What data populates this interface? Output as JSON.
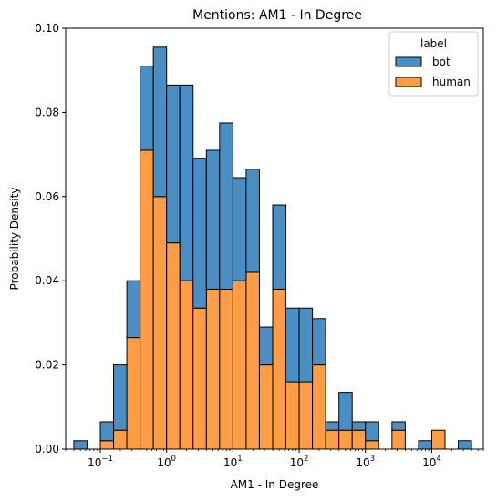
{
  "chart_data": {
    "type": "bar",
    "histogram": true,
    "stacked": true,
    "title": "Mentions: AM1 - In Degree",
    "xlabel": "AM1 - In Degree",
    "ylabel": "Probability Density",
    "xscale": "log",
    "xlim": [
      0.03,
      60000
    ],
    "ylim": [
      0,
      0.1
    ],
    "yticks": [
      "0.00",
      "0.02",
      "0.04",
      "0.06",
      "0.08",
      "0.10"
    ],
    "xticks": [
      {
        "value": 0.1,
        "base": "10",
        "exp": "−1"
      },
      {
        "value": 1,
        "base": "10",
        "exp": "0"
      },
      {
        "value": 10,
        "base": "10",
        "exp": "1"
      },
      {
        "value": 100,
        "base": "10",
        "exp": "2"
      },
      {
        "value": 1000,
        "base": "10",
        "exp": "3"
      },
      {
        "value": 10000,
        "base": "10",
        "exp": "4"
      }
    ],
    "bin_edges_log10": [
      -1.4,
      -1.2,
      -1.0,
      -0.8,
      -0.6,
      -0.4,
      -0.2,
      0.0,
      0.2,
      0.4,
      0.6,
      0.8,
      1.0,
      1.2,
      1.4,
      1.6,
      1.8,
      2.0,
      2.2,
      2.4,
      2.6,
      2.8,
      3.0,
      3.2,
      3.4,
      3.6,
      3.8,
      4.0,
      4.2,
      4.4,
      4.6
    ],
    "series": [
      {
        "name": "human",
        "color": "#ff9d46",
        "values": [
          0,
          0,
          0.002,
          0.0045,
          0.0265,
          0.071,
          0.06,
          0.049,
          0.04,
          0.0335,
          0.038,
          0.038,
          0.04,
          0.042,
          0.02,
          0.038,
          0.016,
          0.016,
          0.02,
          0.0045,
          0.0045,
          0.0045,
          0.002,
          0,
          0.0045,
          0,
          0,
          0.0045,
          0,
          0
        ]
      },
      {
        "name": "bot",
        "color": "#4b8ec4",
        "values": [
          0.002,
          0,
          0.0045,
          0.0155,
          0.0135,
          0.02,
          0.0355,
          0.0375,
          0.0465,
          0.0355,
          0.033,
          0.0395,
          0.0245,
          0.0245,
          0.009,
          0.02,
          0.0175,
          0.0175,
          0.011,
          0.002,
          0.009,
          0.002,
          0.0045,
          0,
          0.002,
          0,
          0.002,
          0,
          0,
          0.002
        ]
      }
    ],
    "legend": {
      "title": "label",
      "placement": "upper right",
      "entries": [
        "bot",
        "human"
      ]
    }
  }
}
